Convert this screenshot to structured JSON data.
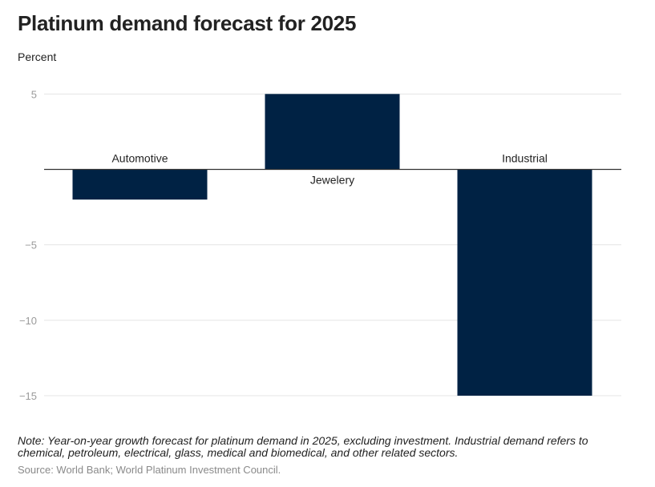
{
  "header": {
    "title": "Platinum demand forecast for 2025",
    "unit_label": "Percent"
  },
  "footer": {
    "note": "Note: Year-on-year growth forecast for platinum demand in 2025, excluding investment. Industrial demand refers to chemical, petroleum, electrical, glass, medical and biomedical, and other related sectors.",
    "source": "Source: World Bank; World Platinum Investment Council."
  },
  "colors": {
    "bar": "#002244",
    "grid": "#e4e4e4",
    "zero_line": "#333333",
    "tick_text": "#9a9a9a",
    "label_text": "#222222"
  },
  "chart_data": {
    "type": "bar",
    "title": "Platinum demand forecast for 2025",
    "ylabel": "Percent",
    "xlabel": "",
    "categories": [
      "Automotive",
      "Jewelery",
      "Industrial"
    ],
    "values": [
      -2,
      5,
      -15
    ],
    "ylim": [
      -15,
      5
    ],
    "yticks": [
      5,
      -5,
      -10,
      -15
    ],
    "ytick_labels": [
      "5",
      "−5",
      "−10",
      "−15"
    ],
    "grid": true,
    "legend": "none"
  }
}
